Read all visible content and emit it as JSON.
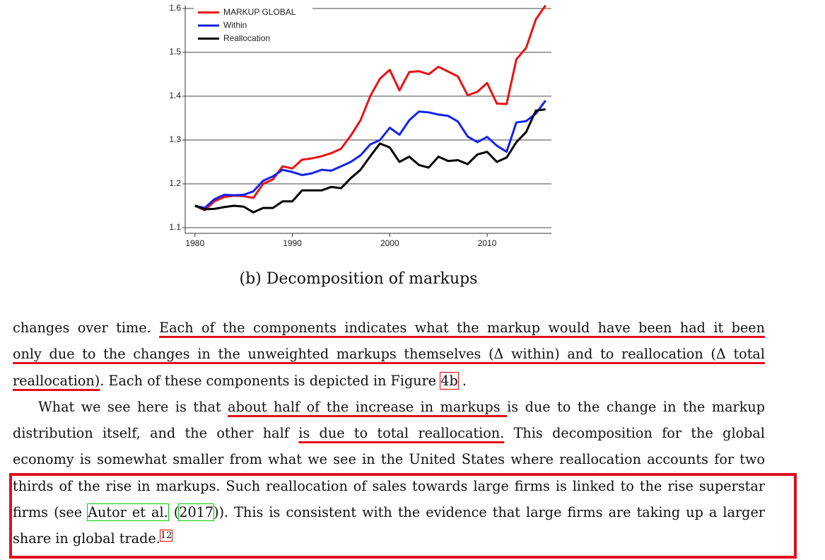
{
  "chart_data": {
    "type": "line",
    "x": [
      1980,
      1981,
      1982,
      1983,
      1984,
      1985,
      1986,
      1987,
      1988,
      1989,
      1990,
      1991,
      1992,
      1993,
      1994,
      1995,
      1996,
      1997,
      1998,
      1999,
      2000,
      2001,
      2002,
      2003,
      2004,
      2005,
      2006,
      2007,
      2008,
      2009,
      2010,
      2011,
      2012,
      2013,
      2014,
      2015,
      2016
    ],
    "series": [
      {
        "name": "MARKUP GLOBAL",
        "color": "#ee1111",
        "values": [
          1.15,
          1.14,
          1.16,
          1.17,
          1.173,
          1.172,
          1.168,
          1.2,
          1.21,
          1.24,
          1.235,
          1.255,
          1.258,
          1.263,
          1.27,
          1.28,
          1.31,
          1.345,
          1.4,
          1.44,
          1.46,
          1.413,
          1.455,
          1.457,
          1.45,
          1.467,
          1.456,
          1.445,
          1.402,
          1.41,
          1.43,
          1.383,
          1.382,
          1.484,
          1.51,
          1.575,
          1.607
        ]
      },
      {
        "name": "Within",
        "color": "#1122ee",
        "values": [
          1.15,
          1.145,
          1.165,
          1.175,
          1.174,
          1.175,
          1.183,
          1.207,
          1.217,
          1.232,
          1.227,
          1.22,
          1.224,
          1.232,
          1.23,
          1.24,
          1.25,
          1.265,
          1.29,
          1.3,
          1.328,
          1.312,
          1.345,
          1.365,
          1.363,
          1.358,
          1.355,
          1.342,
          1.308,
          1.295,
          1.307,
          1.287,
          1.273,
          1.34,
          1.343,
          1.36,
          1.39
        ]
      },
      {
        "name": "Reallocation",
        "color": "#000000",
        "values": [
          1.15,
          1.142,
          1.143,
          1.147,
          1.15,
          1.148,
          1.135,
          1.145,
          1.145,
          1.16,
          1.16,
          1.185,
          1.185,
          1.185,
          1.193,
          1.19,
          1.213,
          1.232,
          1.263,
          1.292,
          1.283,
          1.25,
          1.262,
          1.243,
          1.237,
          1.262,
          1.252,
          1.254,
          1.245,
          1.267,
          1.273,
          1.25,
          1.26,
          1.295,
          1.318,
          1.367,
          1.37
        ]
      }
    ],
    "xlim": [
      1979,
      2016.6
    ],
    "xticks": [
      1980,
      1990,
      2000,
      2010
    ],
    "ylim": [
      1.087,
      1.607
    ],
    "yticks": [
      1.1,
      1.2,
      1.3,
      1.4,
      1.5,
      1.6
    ],
    "grid": true,
    "legend": "top-left"
  },
  "caption": "(b) Decomposition of markups",
  "body": {
    "lines": [
      [
        "changes over time. ",
        "Each of the components indicates what the markup would have been had it been"
      ],
      [
        "only due to the changes in the unweighted markups themselves (Δ within) and to reallocation (Δ total"
      ],
      [
        "reallocation)",
        ". Each of these components is depicted in Figure ",
        "4b",
        " ."
      ],
      [
        "What we see here is that ",
        "about half of the increase in markups ",
        "is due to the change in the markup"
      ],
      [
        "distribution itself, and the other half ",
        "is due to total reallocation.",
        " This decomposition for the global"
      ],
      [
        "economy is somewhat smaller from what we see in the United States where reallocation accounts for two"
      ],
      [
        "thirds of the rise in markups. Such reallocation of sales towards large firms is linked to the rise superstar"
      ],
      [
        "firms (see ",
        "Autor et al.",
        " (",
        "2017",
        ")). This is consistent with the evidence that large firms are taking up a larger"
      ],
      [
        "share in global trade.",
        "12"
      ]
    ]
  }
}
